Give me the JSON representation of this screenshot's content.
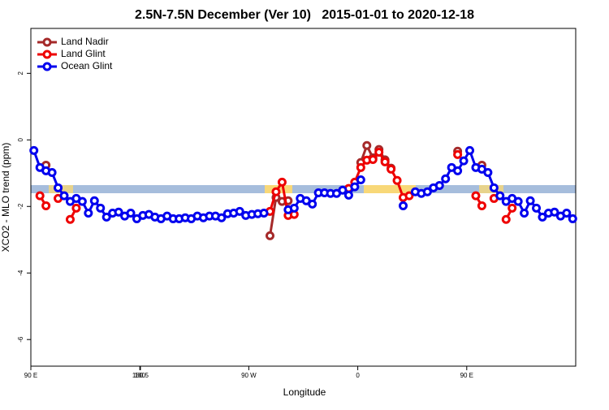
{
  "chart_data": {
    "type": "line",
    "title": "2.5N-7.5N December (Ver 10)   2015-01-01 to 2020-12-18",
    "x_label": "Longitude",
    "y_label": "XCO2 - MLO trend (ppm)",
    "x": [
      92.5,
      97.5,
      102.5,
      107.5,
      112.5,
      117.5,
      122.5,
      127.5,
      132.5,
      137.5,
      142.5,
      147.5,
      152.5,
      157.5,
      162.5,
      167.5,
      172.5,
      177.5,
      182.5,
      187.5,
      192.5,
      197.5,
      202.5,
      207.5,
      212.5,
      217.5,
      222.5,
      227.5,
      232.5,
      237.5,
      242.5,
      247.5,
      252.5,
      257.5,
      262.5,
      267.5,
      272.5,
      277.5,
      282.5,
      287.5,
      292.5,
      297.5,
      302.5,
      307.5,
      312.5,
      317.5,
      322.5,
      327.5,
      332.5,
      337.5,
      342.5,
      347.5,
      352.5,
      357.5,
      362.5,
      367.5,
      372.5,
      377.5,
      382.5,
      387.5,
      392.5,
      397.5,
      402.5,
      407.5,
      412.5,
      417.5,
      422.5,
      427.5,
      432.5,
      437.5,
      442.5,
      447.5,
      452.5,
      457.5,
      462.5,
      467.5,
      472.5,
      477.5,
      482.5,
      487.5,
      492.5,
      497.5,
      502.5,
      507.5,
      512.5,
      517.5,
      522.5,
      527.5,
      532.5,
      537.5
    ],
    "series": [
      {
        "name": "Land Nadir",
        "color": "#a52a2a",
        "values": [
          null,
          null,
          -0.76,
          null,
          null,
          null,
          null,
          null,
          null,
          null,
          null,
          null,
          null,
          null,
          null,
          null,
          null,
          null,
          null,
          null,
          null,
          null,
          null,
          null,
          null,
          null,
          null,
          null,
          null,
          null,
          null,
          null,
          null,
          null,
          null,
          null,
          null,
          null,
          null,
          -2.88,
          -1.73,
          -1.85,
          -1.83,
          null,
          null,
          null,
          null,
          null,
          null,
          null,
          null,
          null,
          null,
          null,
          -0.68,
          -0.17,
          -0.54,
          -0.29,
          -0.6,
          -0.85,
          null,
          null,
          null,
          null,
          null,
          null,
          null,
          null,
          null,
          null,
          -0.34,
          null,
          null,
          null,
          -0.76,
          null,
          null,
          null,
          null,
          null,
          null,
          null,
          null,
          null,
          null,
          null,
          null,
          null,
          null,
          null
        ]
      },
      {
        "name": "Land Glint",
        "color": "#ee0000",
        "values": [
          null,
          -1.68,
          -1.98,
          null,
          -1.76,
          null,
          -2.39,
          -2.05,
          null,
          null,
          null,
          null,
          null,
          null,
          null,
          null,
          null,
          null,
          null,
          null,
          null,
          null,
          null,
          null,
          null,
          null,
          null,
          null,
          null,
          null,
          null,
          null,
          null,
          null,
          null,
          null,
          null,
          null,
          null,
          -2.15,
          -1.56,
          -1.27,
          -2.27,
          -2.24,
          null,
          null,
          null,
          null,
          null,
          null,
          null,
          null,
          -1.46,
          -1.27,
          -0.83,
          -0.61,
          -0.59,
          -0.37,
          -0.66,
          -0.88,
          -1.22,
          -1.73,
          -1.68,
          null,
          null,
          null,
          null,
          null,
          null,
          null,
          -0.44,
          null,
          null,
          -1.68,
          -1.98,
          null,
          -1.76,
          null,
          -2.39,
          -2.05,
          null,
          null,
          null,
          null,
          null,
          null,
          null,
          null,
          null,
          null
        ]
      },
      {
        "name": "Ocean Glint",
        "color": "#0000ee",
        "values": [
          -0.32,
          -0.83,
          -0.93,
          -0.98,
          -1.44,
          -1.68,
          -1.85,
          -1.76,
          -1.85,
          -2.2,
          -1.83,
          -2.05,
          -2.32,
          -2.2,
          -2.17,
          -2.29,
          -2.2,
          -2.37,
          -2.27,
          -2.24,
          -2.32,
          -2.37,
          -2.29,
          -2.37,
          -2.37,
          -2.34,
          -2.37,
          -2.29,
          -2.34,
          -2.29,
          -2.29,
          -2.34,
          -2.22,
          -2.2,
          -2.15,
          -2.27,
          -2.24,
          -2.22,
          -2.2,
          null,
          null,
          null,
          -2.1,
          -2.05,
          -1.76,
          -1.83,
          -1.93,
          -1.59,
          -1.59,
          -1.61,
          -1.61,
          -1.51,
          -1.66,
          -1.41,
          -1.2,
          null,
          null,
          null,
          null,
          null,
          null,
          -1.98,
          null,
          -1.56,
          -1.61,
          -1.56,
          -1.44,
          -1.37,
          -1.17,
          -0.83,
          -0.93,
          -0.63,
          -0.32,
          -0.83,
          -0.88,
          -0.98,
          -1.44,
          -1.68,
          -1.85,
          -1.76,
          -1.85,
          -2.2,
          -1.83,
          -2.05,
          -2.32,
          -2.2,
          -2.17,
          -2.29,
          -2.2,
          -2.37
        ]
      }
    ],
    "xlim": [
      90,
      540
    ],
    "xticks": [
      {
        "value": 90,
        "label": "90 E"
      },
      180,
      {
        "value": 270,
        "label": "90 W"
      },
      {
        "value": 360,
        "label": "0"
      },
      {
        "value": 450,
        "label": "90 E"
      },
      180.5
    ],
    "ylim": [
      -6.8,
      3.35
    ],
    "yticks": [
      -6,
      -4,
      -2,
      0,
      2
    ],
    "legend": "top-left"
  }
}
